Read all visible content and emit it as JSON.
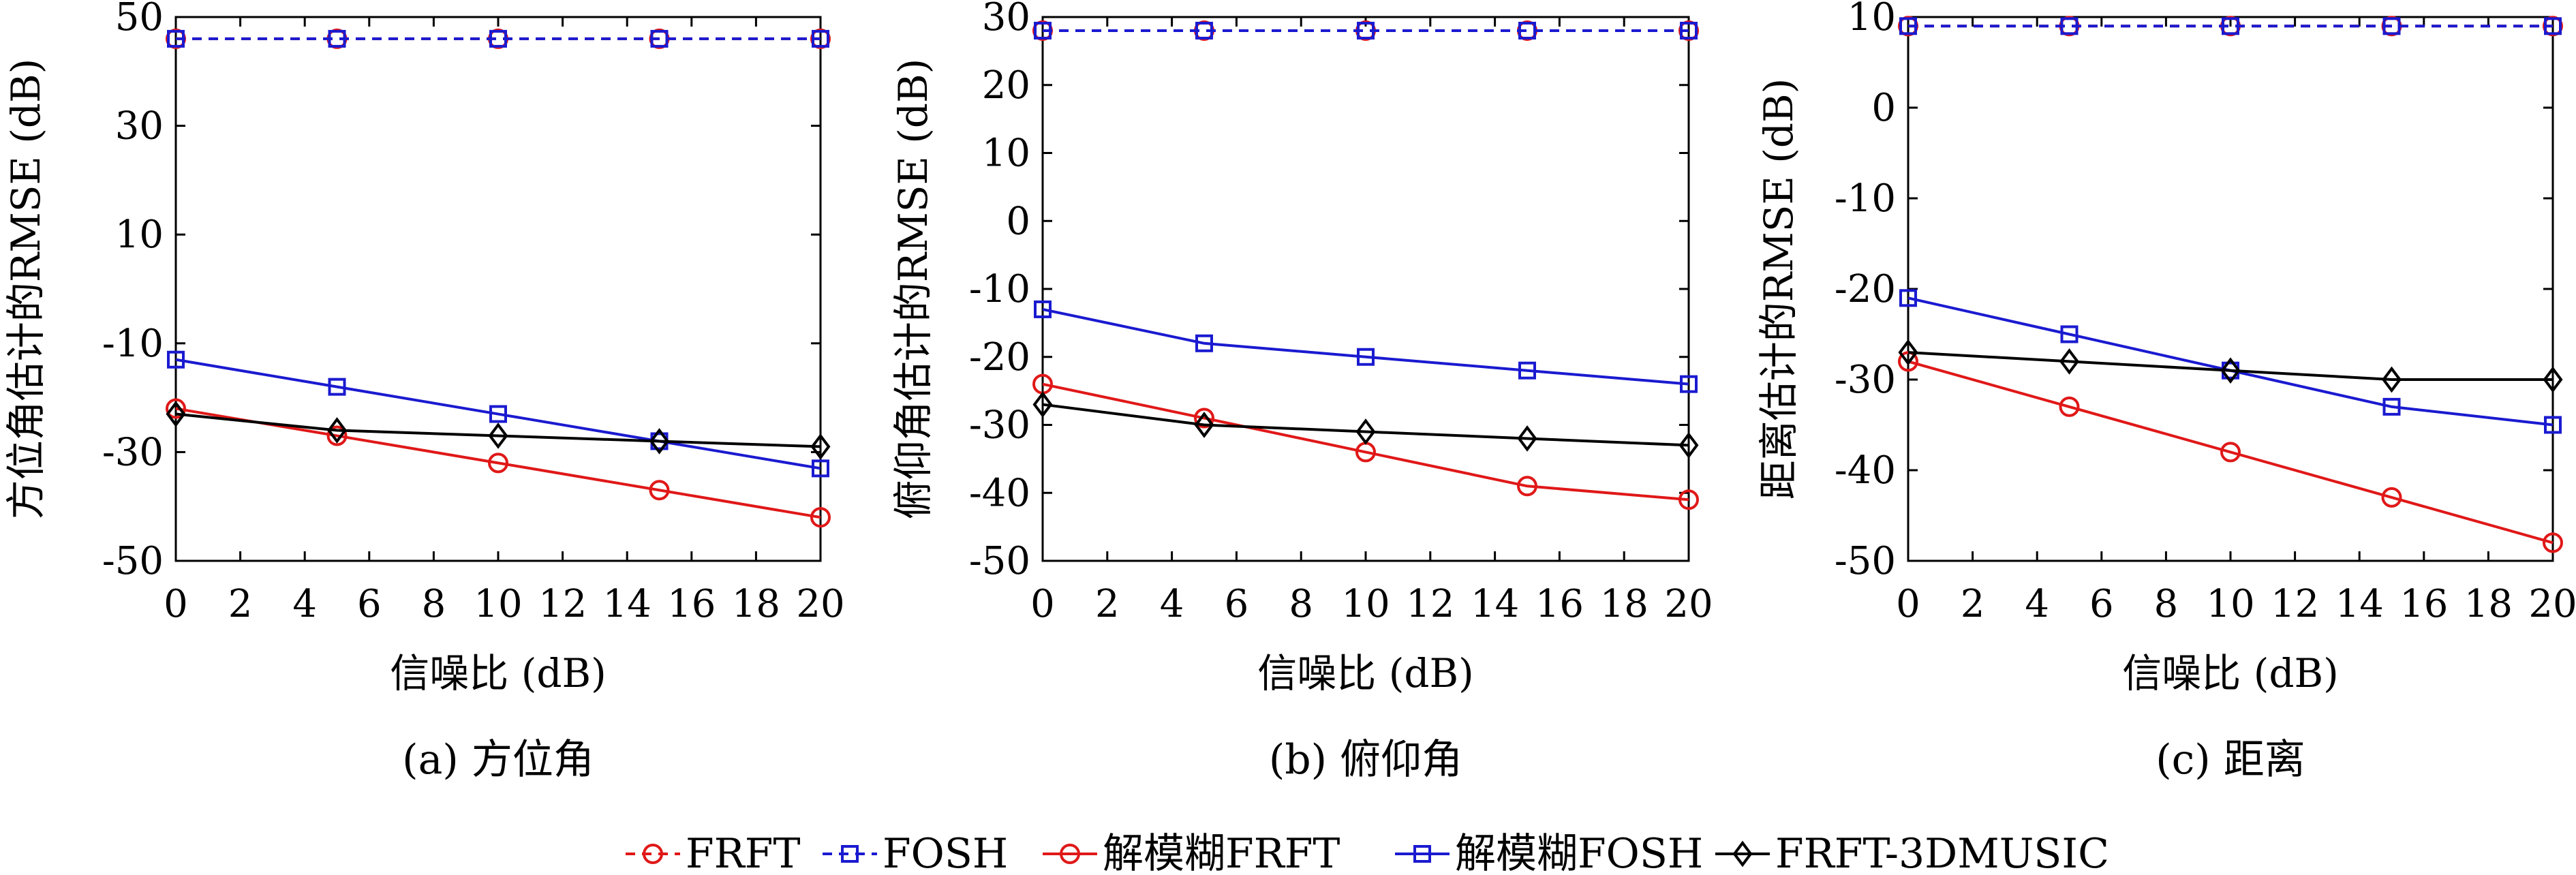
{
  "legend": {
    "entries": [
      {
        "label": "FRFT",
        "color": "#e01818",
        "dashed": true,
        "marker": "circle"
      },
      {
        "label": "FOSH",
        "color": "#1a1ad0",
        "dashed": true,
        "marker": "square"
      },
      {
        "label": "解模糊FRFT",
        "color": "#e01818",
        "dashed": false,
        "marker": "circle"
      },
      {
        "label": "解模糊FOSH",
        "color": "#1a1ad0",
        "dashed": false,
        "marker": "square"
      },
      {
        "label": "FRFT-3DMUSIC",
        "color": "#000000",
        "dashed": false,
        "marker": "diamond"
      }
    ]
  },
  "chart_data": [
    {
      "type": "line",
      "caption": "(a) 方位角",
      "xlabel": "信噪比 (dB)",
      "ylabel": "方位角估计的RMSE (dB)",
      "xlim": [
        0,
        20
      ],
      "ylim": [
        -50,
        50
      ],
      "xticks": [
        0,
        2,
        4,
        6,
        8,
        10,
        12,
        14,
        16,
        18,
        20
      ],
      "yticks": [
        -50,
        -30,
        -10,
        10,
        30,
        50
      ],
      "x": [
        0,
        5,
        10,
        15,
        20
      ],
      "series": [
        {
          "name": "FRFT",
          "values": [
            46,
            46,
            46,
            46,
            46
          ]
        },
        {
          "name": "FOSH",
          "values": [
            46,
            46,
            46,
            46,
            46
          ]
        },
        {
          "name": "解模糊FRFT",
          "values": [
            -22,
            -27,
            -32,
            -37,
            -42
          ]
        },
        {
          "name": "解模糊FOSH",
          "values": [
            -13,
            -18,
            -23,
            -28,
            -33
          ]
        },
        {
          "name": "FRFT-3DMUSIC",
          "values": [
            -23,
            -26,
            -27,
            -28,
            -29
          ]
        }
      ]
    },
    {
      "type": "line",
      "caption": "(b) 俯仰角",
      "xlabel": "信噪比 (dB)",
      "ylabel": "俯仰角估计的RMSE (dB)",
      "xlim": [
        0,
        20
      ],
      "ylim": [
        -50,
        30
      ],
      "xticks": [
        0,
        2,
        4,
        6,
        8,
        10,
        12,
        14,
        16,
        18,
        20
      ],
      "yticks": [
        -50,
        -40,
        -30,
        -20,
        -10,
        0,
        10,
        20,
        30
      ],
      "x": [
        0,
        5,
        10,
        15,
        20
      ],
      "series": [
        {
          "name": "FRFT",
          "values": [
            28,
            28,
            28,
            28,
            28
          ]
        },
        {
          "name": "FOSH",
          "values": [
            28,
            28,
            28,
            28,
            28
          ]
        },
        {
          "name": "解模糊FRFT",
          "values": [
            -24,
            -29,
            -34,
            -39,
            -41
          ]
        },
        {
          "name": "解模糊FOSH",
          "values": [
            -13,
            -18,
            -20,
            -22,
            -24
          ]
        },
        {
          "name": "FRFT-3DMUSIC",
          "values": [
            -27,
            -30,
            -31,
            -32,
            -33
          ]
        }
      ]
    },
    {
      "type": "line",
      "caption": "(c) 距离",
      "xlabel": "信噪比 (dB)",
      "ylabel": "距离估计的RMSE (dB)",
      "xlim": [
        0,
        20
      ],
      "ylim": [
        -50,
        10
      ],
      "xticks": [
        0,
        2,
        4,
        6,
        8,
        10,
        12,
        14,
        16,
        18,
        20
      ],
      "yticks": [
        -50,
        -40,
        -30,
        -20,
        -10,
        0,
        10
      ],
      "x": [
        0,
        5,
        10,
        15,
        20
      ],
      "series": [
        {
          "name": "FRFT",
          "values": [
            9,
            9,
            9,
            9,
            9
          ]
        },
        {
          "name": "FOSH",
          "values": [
            9,
            9,
            9,
            9,
            9
          ]
        },
        {
          "name": "解模糊FRFT",
          "values": [
            -28,
            -33,
            -38,
            -43,
            -48
          ]
        },
        {
          "name": "解模糊FOSH",
          "values": [
            -21,
            -25,
            -29,
            -33,
            -35
          ]
        },
        {
          "name": "FRFT-3DMUSIC",
          "values": [
            -27,
            -28,
            -29,
            -30,
            -30
          ]
        }
      ]
    }
  ]
}
